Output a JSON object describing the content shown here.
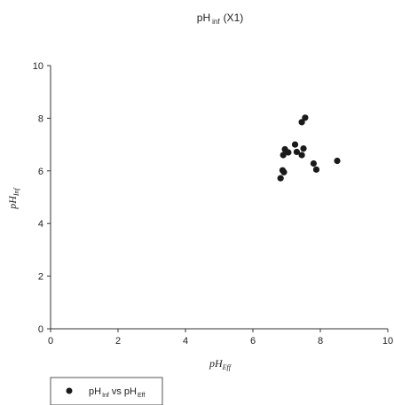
{
  "chart_data": {
    "type": "scatter",
    "title": {
      "base": "pH",
      "sub": "inf",
      "suffix": "(X1)"
    },
    "xlabel": {
      "base": "pH",
      "sub": "Eff"
    },
    "ylabel": {
      "base": "pH",
      "sub": "Inf"
    },
    "xlim": [
      0,
      10
    ],
    "ylim": [
      0,
      10
    ],
    "x_ticks": [
      "0",
      "2",
      "4",
      "6",
      "8",
      "10"
    ],
    "y_ticks": [
      "0",
      "2",
      "4",
      "6",
      "8",
      "10"
    ],
    "grid": false,
    "legend_position": "bottom-left",
    "marker_color": "#1a1a1a",
    "series": [
      {
        "name": {
          "base": "pH",
          "sub1": "Inf",
          "mid": "vs pH",
          "sub2": "Eff"
        },
        "points": [
          {
            "x": 7.55,
            "y": 8.02
          },
          {
            "x": 7.45,
            "y": 7.85
          },
          {
            "x": 7.25,
            "y": 7.0
          },
          {
            "x": 7.5,
            "y": 6.85
          },
          {
            "x": 6.95,
            "y": 6.82
          },
          {
            "x": 7.05,
            "y": 6.7
          },
          {
            "x": 7.3,
            "y": 6.72
          },
          {
            "x": 6.9,
            "y": 6.6
          },
          {
            "x": 7.45,
            "y": 6.6
          },
          {
            "x": 8.5,
            "y": 6.38
          },
          {
            "x": 7.8,
            "y": 6.28
          },
          {
            "x": 7.88,
            "y": 6.05
          },
          {
            "x": 6.88,
            "y": 6.02
          },
          {
            "x": 6.92,
            "y": 5.95
          },
          {
            "x": 6.82,
            "y": 5.72
          }
        ]
      }
    ]
  }
}
